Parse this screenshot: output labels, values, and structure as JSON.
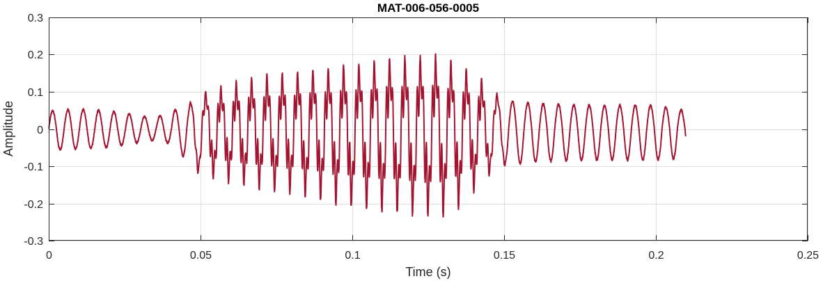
{
  "chart_data": {
    "type": "line",
    "title": "MAT-006-056-0005",
    "xlabel": "Time (s)",
    "ylabel": "Amplitude",
    "xlim": [
      0,
      0.25
    ],
    "ylim": [
      -0.3,
      0.3
    ],
    "xticks": [
      0,
      0.05,
      0.1,
      0.15,
      0.2,
      0.25
    ],
    "xtick_labels": [
      "0",
      "0.05",
      "0.1",
      "0.15",
      "0.2",
      "0.25"
    ],
    "yticks": [
      0.3,
      0.2,
      0.1,
      0,
      -0.1,
      -0.2,
      -0.3
    ],
    "ytick_labels": [
      "0.3",
      "0.2",
      "0.1",
      "0",
      "-0.1",
      "-0.2",
      "-0.3"
    ],
    "grid": true,
    "series_color": "#a2142f",
    "signal": {
      "t_start": 0,
      "t_end": 0.2098,
      "envelope": [
        {
          "t": 0.0,
          "top": 0.05,
          "bottom": -0.06
        },
        {
          "t": 0.01,
          "top": 0.055,
          "bottom": -0.055
        },
        {
          "t": 0.02,
          "top": 0.05,
          "bottom": -0.05
        },
        {
          "t": 0.035,
          "top": 0.03,
          "bottom": -0.03
        },
        {
          "t": 0.04,
          "top": 0.05,
          "bottom": -0.04
        },
        {
          "t": 0.045,
          "top": 0.06,
          "bottom": -0.08
        },
        {
          "t": 0.05,
          "top": 0.1,
          "bottom": -0.13
        },
        {
          "t": 0.06,
          "top": 0.13,
          "bottom": -0.15
        },
        {
          "t": 0.07,
          "top": 0.15,
          "bottom": -0.17
        },
        {
          "t": 0.08,
          "top": 0.16,
          "bottom": -0.18
        },
        {
          "t": 0.09,
          "top": 0.17,
          "bottom": -0.2
        },
        {
          "t": 0.1,
          "top": 0.18,
          "bottom": -0.22
        },
        {
          "t": 0.11,
          "top": 0.195,
          "bottom": -0.23
        },
        {
          "t": 0.12,
          "top": 0.2,
          "bottom": -0.24
        },
        {
          "t": 0.128,
          "top": 0.205,
          "bottom": -0.25
        },
        {
          "t": 0.135,
          "top": 0.18,
          "bottom": -0.22
        },
        {
          "t": 0.14,
          "top": 0.16,
          "bottom": -0.18
        },
        {
          "t": 0.145,
          "top": 0.12,
          "bottom": -0.13
        },
        {
          "t": 0.15,
          "top": 0.08,
          "bottom": -0.1
        },
        {
          "t": 0.16,
          "top": 0.07,
          "bottom": -0.09
        },
        {
          "t": 0.18,
          "top": 0.065,
          "bottom": -0.085
        },
        {
          "t": 0.2,
          "top": 0.065,
          "bottom": -0.085
        },
        {
          "t": 0.2098,
          "top": 0.05,
          "bottom": -0.08
        }
      ]
    }
  }
}
